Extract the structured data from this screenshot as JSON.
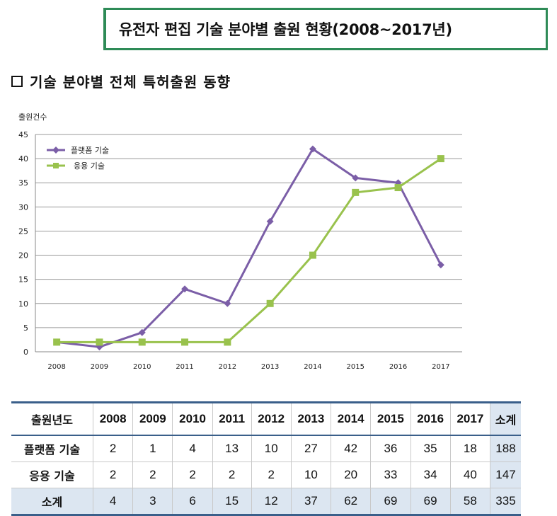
{
  "title": "유전자 편집 기술 분야별 출원 현황(2008~2017년)",
  "section_heading": "기술 분야별 전체 특허출원 동향",
  "chart_data": {
    "type": "line",
    "ylabel": "출원건수",
    "x": [
      "2008",
      "2009",
      "2010",
      "2011",
      "2012",
      "2013",
      "2014",
      "2015",
      "2016",
      "2017"
    ],
    "ylim": [
      0,
      45
    ],
    "yticks": [
      0,
      5,
      10,
      15,
      20,
      25,
      30,
      35,
      40,
      45
    ],
    "grid": true,
    "legend_position": "top-left",
    "series": [
      {
        "name": "플랫폼 기술",
        "color": "#7b5ea7",
        "marker": "diamond",
        "values": [
          2,
          1,
          4,
          13,
          10,
          27,
          42,
          36,
          35,
          18
        ]
      },
      {
        "name": "응용 기술",
        "color": "#99c24d",
        "marker": "square",
        "values": [
          2,
          2,
          2,
          2,
          2,
          10,
          20,
          33,
          34,
          40
        ]
      }
    ]
  },
  "table": {
    "corner": "출원년도",
    "years": [
      "2008",
      "2009",
      "2010",
      "2011",
      "2012",
      "2013",
      "2014",
      "2015",
      "2016",
      "2017"
    ],
    "total_label": "소계",
    "rows": [
      {
        "label": "플랫폼 기술",
        "values": [
          "2",
          "1",
          "4",
          "13",
          "10",
          "27",
          "42",
          "36",
          "35",
          "18"
        ],
        "total": "188"
      },
      {
        "label": "응용 기술",
        "values": [
          "2",
          "2",
          "2",
          "2",
          "2",
          "10",
          "20",
          "33",
          "34",
          "40"
        ],
        "total": "147"
      },
      {
        "label": "소계",
        "values": [
          "4",
          "3",
          "6",
          "15",
          "12",
          "37",
          "62",
          "69",
          "69",
          "58"
        ],
        "total": "335"
      }
    ]
  }
}
